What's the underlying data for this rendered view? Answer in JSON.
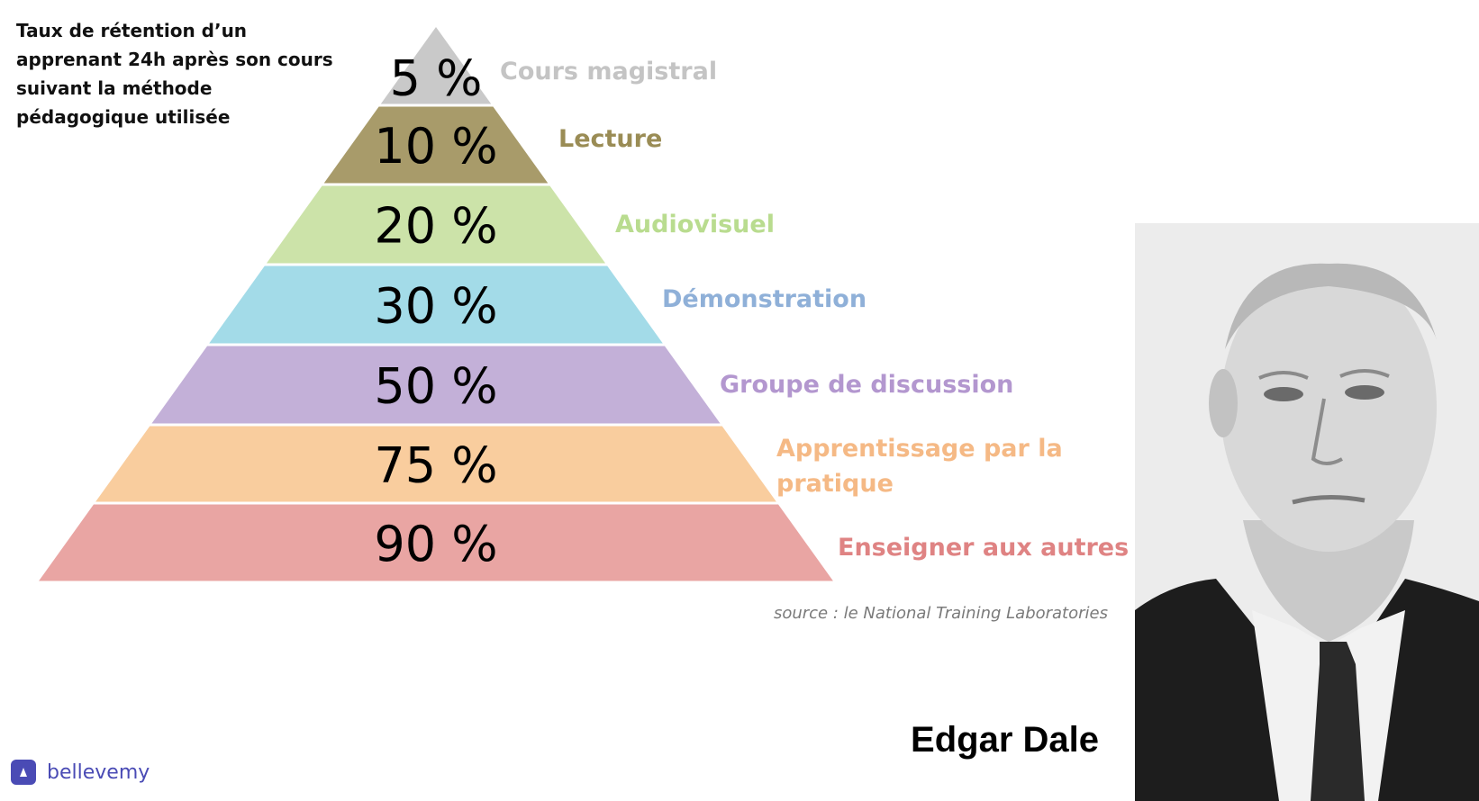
{
  "caption": "Taux de rétention d’un apprenant 24h après son cours suivant la méthode pédagogique utilisée",
  "layers": [
    {
      "pct": "5 %",
      "label": "Cours magistral",
      "value": 5,
      "fill": "#c9c9c9",
      "label_color": "#c4c4c4"
    },
    {
      "pct": "10 %",
      "label": "Lecture",
      "value": 10,
      "fill": "#a89b6a",
      "label_color": "#9a8c55"
    },
    {
      "pct": "20 %",
      "label": "Audiovisuel",
      "value": 20,
      "fill": "#cce3a9",
      "label_color": "#b9dc8f"
    },
    {
      "pct": "30 %",
      "label": "Démonstration",
      "value": 30,
      "fill": "#a3dbe8",
      "label_color": "#8fb0d8"
    },
    {
      "pct": "50 %",
      "label": "Groupe de discussion",
      "value": 50,
      "fill": "#c3b0d8",
      "label_color": "#b397cf"
    },
    {
      "pct": "75 %",
      "label": "Apprentissage par la pratique",
      "value": 75,
      "fill": "#f9cd9e",
      "label_color": "#f5b985"
    },
    {
      "pct": "90 %",
      "label": "Enseigner aux autres",
      "value": 90,
      "fill": "#e9a5a3",
      "label_color": "#df8383"
    }
  ],
  "source": "source : le National Training Laboratories",
  "person_name": "Edgar Dale",
  "brand": "bellevemy"
}
